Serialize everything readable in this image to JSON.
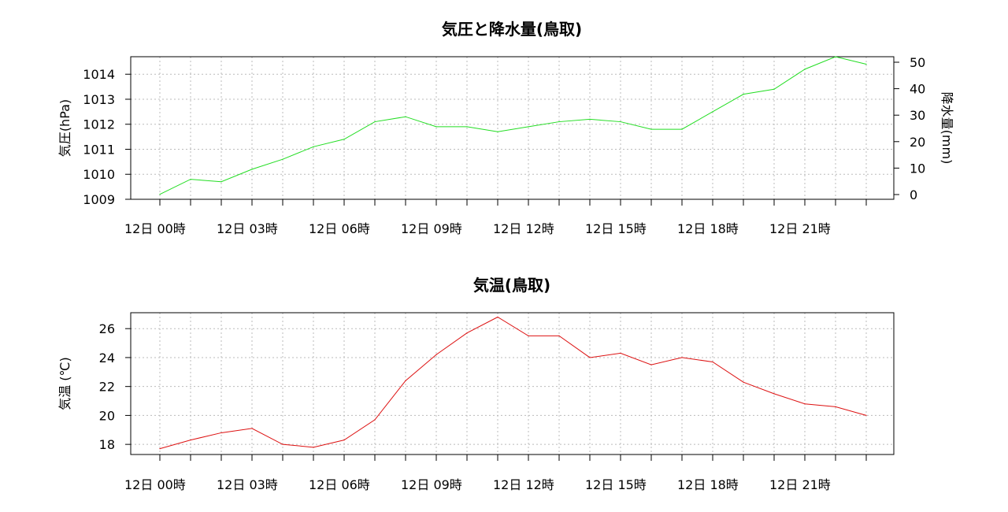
{
  "chart_data": [
    {
      "type": "line",
      "title": "気圧と降水量(鳥取)",
      "ylabel": "気圧(hPa)",
      "y2label": "降水量(mm)",
      "ylim": [
        1009,
        1014.7
      ],
      "y2lim": [
        0,
        50
      ],
      "yticks": [
        "1009",
        "1010",
        "1011",
        "1012",
        "1013",
        "1014"
      ],
      "y2ticks": [
        "0",
        "10",
        "20",
        "30",
        "40",
        "50"
      ],
      "xticklabels": [
        "12日 00時",
        "12日 03時",
        "12日 06時",
        "12日 09時",
        "12日 12時",
        "12日 15時",
        "12日 18時",
        "12日 21時"
      ],
      "grid": true,
      "series": [
        {
          "color": "#22dd22",
          "values": [
            1009.2,
            1009.8,
            1009.7,
            1010.2,
            1010.6,
            1011.1,
            1011.4,
            1012.1,
            1012.3,
            1011.9,
            1011.9,
            1011.7,
            1011.9,
            1012.1,
            1012.2,
            1012.1,
            1011.8,
            1011.8,
            1012.5,
            1013.2,
            1013.4,
            1014.2,
            1014.7,
            1014.4
          ]
        }
      ]
    },
    {
      "type": "line",
      "title": "気温(鳥取)",
      "ylabel": "気温 (℃)",
      "ylim": [
        17.3,
        27.1
      ],
      "yticks": [
        "18",
        "20",
        "22",
        "24",
        "26"
      ],
      "xticklabels": [
        "12日 00時",
        "12日 03時",
        "12日 06時",
        "12日 09時",
        "12日 12時",
        "12日 15時",
        "12日 18時",
        "12日 21時"
      ],
      "grid": true,
      "series": [
        {
          "color": "#dd1111",
          "values": [
            17.7,
            18.3,
            18.8,
            19.1,
            18.0,
            17.8,
            18.3,
            19.7,
            22.4,
            24.2,
            25.7,
            26.8,
            25.5,
            25.5,
            24.0,
            24.3,
            23.5,
            24.0,
            23.7,
            22.3,
            21.5,
            20.8,
            20.6,
            20.0
          ]
        }
      ]
    }
  ]
}
